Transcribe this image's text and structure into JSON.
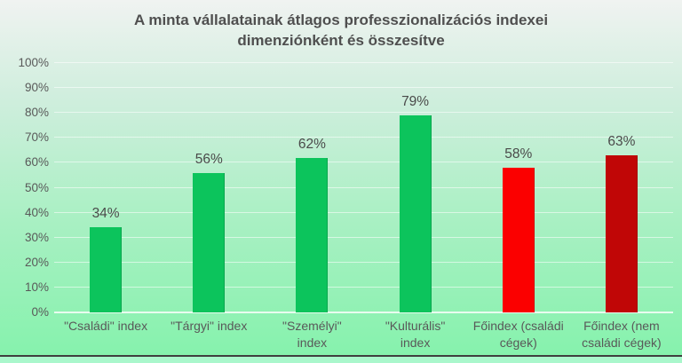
{
  "chart_data": {
    "type": "bar",
    "title": "A minta vállalatainak átlagos professzionalizációs indexei dimenziónként és összesítve",
    "xlabel": "",
    "ylabel": "",
    "ylim": [
      0,
      100
    ],
    "ytick_step": 10,
    "ytick_labels": [
      "0%",
      "10%",
      "20%",
      "30%",
      "40%",
      "50%",
      "60%",
      "70%",
      "80%",
      "90%",
      "100%"
    ],
    "grid": true,
    "legend": false,
    "categories": [
      {
        "label": "\"Családi\" index",
        "lines": [
          "\"Családi\" index"
        ]
      },
      {
        "label": "\"Tárgyi\" index",
        "lines": [
          "\"Tárgyi\" index"
        ]
      },
      {
        "label": "\"Személyi\" index",
        "lines": [
          "\"Személyi\"",
          "index"
        ]
      },
      {
        "label": "\"Kulturális\" index",
        "lines": [
          "\"Kulturális\"",
          "index"
        ]
      },
      {
        "label": "Főindex (családi cégek)",
        "lines": [
          "Főindex (családi",
          "cégek)"
        ]
      },
      {
        "label": "Főindex (nem családi cégek)",
        "lines": [
          "Főindex (nem",
          "családi cégek)"
        ]
      }
    ],
    "values": [
      34,
      56,
      62,
      79,
      58,
      63
    ],
    "data_labels": [
      "34%",
      "56%",
      "62%",
      "79%",
      "58%",
      "63%"
    ],
    "bar_colors": [
      "#0cc45c",
      "#0cc45c",
      "#0cc45c",
      "#0cc45c",
      "#fb0000",
      "#c00606"
    ],
    "colors": {
      "background_top": "#f0f3f1",
      "background_bottom": "#86f2ad",
      "below_edge_background": "#aaf7cc",
      "bottom_edge_line": "#3f3f3f",
      "gridline": "rgba(255,255,255,0.55)",
      "axis_line": "rgba(255,255,255,0.8)",
      "title_text": "#4f4f4f",
      "axis_text": "#595959",
      "value_text": "#4a4a4a",
      "green_bar": "#0cc45c",
      "red_bar": "#fb0000",
      "dark_red_bar": "#c00606"
    }
  }
}
